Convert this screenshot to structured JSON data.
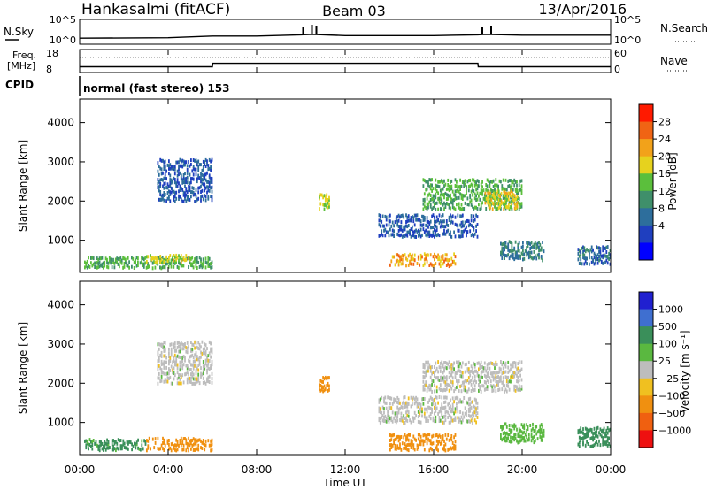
{
  "header": {
    "station": "Hankasalmi (fitACF)",
    "beam": "Beam 03",
    "date": "13/Apr/2016"
  },
  "noise_panel": {
    "left_label": "N.Sky",
    "right_label": "N.Search",
    "y_top_left": "10^5",
    "y_bottom_left": "10^0",
    "y_top_right": "10^5",
    "y_bottom_right": "10^0"
  },
  "freq_panel": {
    "left_label_1": "Freq.",
    "left_label_2": "[MHz]",
    "y_top_left": "18",
    "y_bottom_left": "8",
    "right_label": "Nave",
    "y_top_right": "60",
    "y_bottom_right": "0"
  },
  "cpid": {
    "label": "CPID",
    "value": "normal (fast stereo) 153"
  },
  "x_axis": {
    "label": "Time UT",
    "ticks": [
      "00:00",
      "04:00",
      "08:00",
      "12:00",
      "16:00",
      "20:00",
      "00:00"
    ]
  },
  "y_axis": {
    "label": "Slant Range [km]",
    "ticks": [
      "1000",
      "2000",
      "3000",
      "4000"
    ]
  },
  "power_colorbar": {
    "label": "Power [dB]",
    "ticks": [
      "4",
      "8",
      "12",
      "16",
      "20",
      "24",
      "28"
    ],
    "colors": [
      "#0000ff",
      "#1f3fbf",
      "#2d6e9c",
      "#3f8f6a",
      "#5bbf3c",
      "#e6d21e",
      "#f2a21a",
      "#f06414",
      "#ff1a00"
    ]
  },
  "velocity_colorbar": {
    "label": "Velocity [m s⁻¹]",
    "ticks": [
      "1000",
      "500",
      "100",
      "25",
      "−25",
      "−100",
      "−500",
      "−1000"
    ],
    "colors": [
      "#2020d0",
      "#3f6fd0",
      "#3a8f5a",
      "#5ab840",
      "#bdbdbd",
      "#f0c020",
      "#f09010",
      "#f06010",
      "#ee1010"
    ]
  },
  "chart_data": [
    {
      "type": "line",
      "title": "N.Sky / N.Search",
      "x": [
        "00:00",
        "04:00",
        "06:00",
        "08:00",
        "10:00",
        "10:30",
        "12:00",
        "16:00",
        "18:00",
        "18:20",
        "20:00",
        "24:00"
      ],
      "series": [
        {
          "name": "N.Sky",
          "values": [
            1.0,
            1.1,
            1.5,
            1.5,
            1.8,
            1.9,
            1.6,
            1.6,
            1.8,
            1.9,
            1.7,
            1.7
          ]
        }
      ],
      "ylim": [
        0,
        5
      ],
      "yscale": "log"
    },
    {
      "type": "line",
      "title": "Freq. [MHz] / Nave",
      "x": [
        "00:00",
        "06:00",
        "06:01",
        "18:00",
        "18:01",
        "24:00"
      ],
      "series": [
        {
          "name": "Freq.",
          "values": [
            10.5,
            10.5,
            12,
            12,
            10.5,
            10.5
          ]
        },
        {
          "name": "Nave",
          "values": [
            40,
            40,
            40,
            40,
            40,
            40
          ]
        }
      ],
      "ylim": [
        8,
        18
      ]
    },
    {
      "type": "heatmap",
      "title": "Power [dB]",
      "xlabel": "Time UT",
      "ylabel": "Slant Range [km]",
      "xlim": [
        0,
        24
      ],
      "ylim": [
        180,
        4600
      ],
      "blobs": [
        {
          "t0": 0.2,
          "t1": 6.0,
          "r0": 300,
          "r1": 600,
          "power": 14
        },
        {
          "t0": 3.0,
          "t1": 5.0,
          "r0": 450,
          "r1": 650,
          "power": 20
        },
        {
          "t0": 3.5,
          "t1": 6.0,
          "r0": 2000,
          "r1": 3100,
          "power": 6
        },
        {
          "t0": 10.8,
          "t1": 11.3,
          "r0": 1800,
          "r1": 2200,
          "power": 18
        },
        {
          "t0": 14.0,
          "t1": 17.0,
          "r0": 350,
          "r1": 700,
          "power": 24
        },
        {
          "t0": 13.5,
          "t1": 18.0,
          "r0": 1100,
          "r1": 1700,
          "power": 6
        },
        {
          "t0": 15.5,
          "t1": 20.0,
          "r0": 1800,
          "r1": 2600,
          "power": 14
        },
        {
          "t0": 18.3,
          "t1": 19.8,
          "r0": 1800,
          "r1": 2300,
          "power": 20
        },
        {
          "t0": 19.0,
          "t1": 21.0,
          "r0": 500,
          "r1": 1000,
          "power": 10
        },
        {
          "t0": 22.5,
          "t1": 24.0,
          "r0": 400,
          "r1": 900,
          "power": 8
        }
      ]
    },
    {
      "type": "heatmap",
      "title": "Velocity [m s⁻¹]",
      "xlabel": "Time UT",
      "ylabel": "Slant Range [km]",
      "xlim": [
        0,
        24
      ],
      "ylim": [
        180,
        4600
      ],
      "blobs": [
        {
          "t0": 0.2,
          "t1": 3.0,
          "r0": 300,
          "r1": 600,
          "velocity": 120
        },
        {
          "t0": 3.0,
          "t1": 6.0,
          "r0": 300,
          "r1": 650,
          "velocity": -150
        },
        {
          "t0": 3.5,
          "t1": 6.0,
          "r0": 2000,
          "r1": 3100,
          "velocity": 0
        },
        {
          "t0": 10.8,
          "t1": 11.3,
          "r0": 1800,
          "r1": 2200,
          "velocity": -400
        },
        {
          "t0": 14.0,
          "t1": 17.0,
          "r0": 300,
          "r1": 750,
          "velocity": -200
        },
        {
          "t0": 13.5,
          "t1": 18.0,
          "r0": 1000,
          "r1": 1700,
          "velocity": 0
        },
        {
          "t0": 15.5,
          "t1": 20.0,
          "r0": 1800,
          "r1": 2600,
          "velocity": 0
        },
        {
          "t0": 19.0,
          "t1": 21.0,
          "r0": 500,
          "r1": 1000,
          "velocity": 60
        },
        {
          "t0": 22.5,
          "t1": 24.0,
          "r0": 400,
          "r1": 900,
          "velocity": 150
        }
      ]
    }
  ]
}
